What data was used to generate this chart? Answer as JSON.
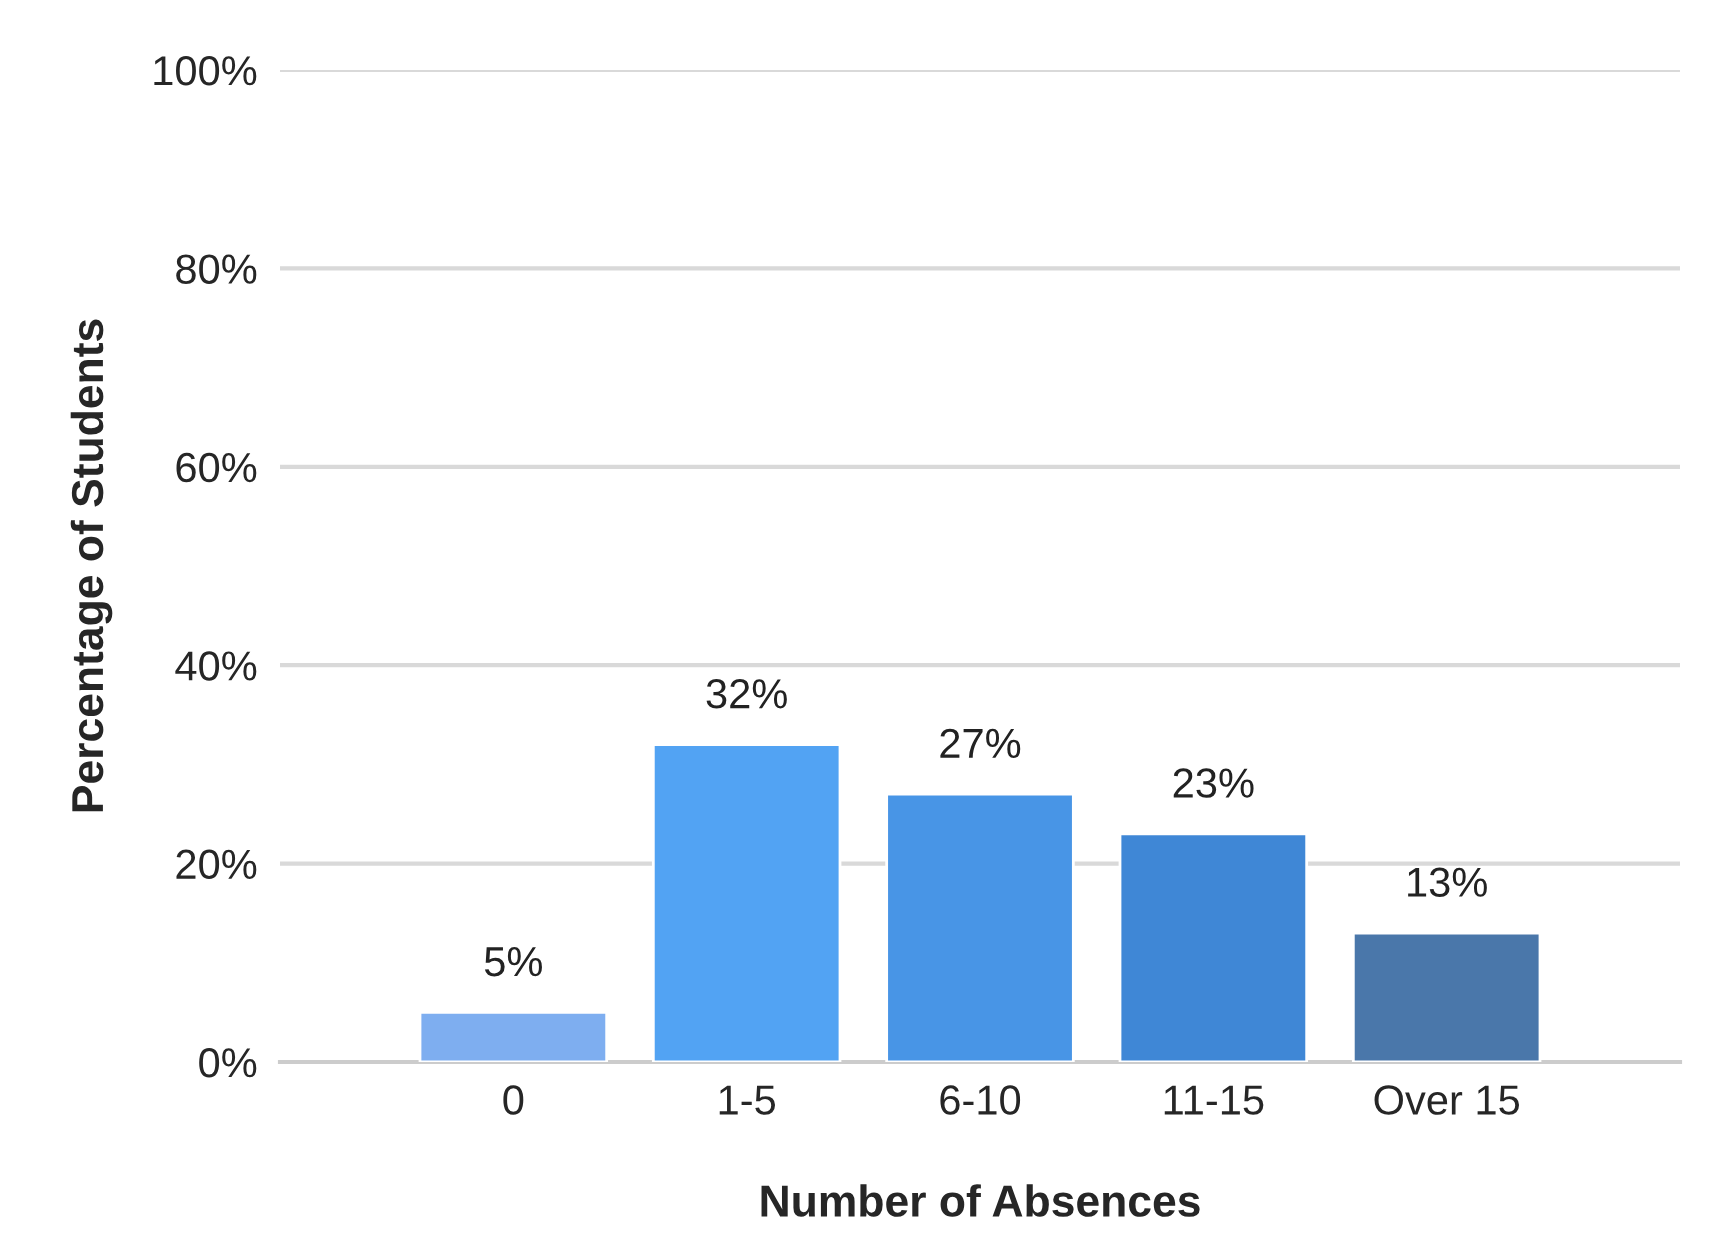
{
  "chart_data": {
    "type": "bar",
    "xlabel": "Number of Absences",
    "ylabel": "Percentage of Students",
    "categories": [
      "0",
      "1-5",
      "6-10",
      "11-15",
      "Over 15"
    ],
    "values": [
      5,
      32,
      27,
      23,
      13
    ],
    "colors": [
      "#7eaef0",
      "#52a3f3",
      "#4895e6",
      "#3f87d6",
      "#4a77aa"
    ],
    "value_labels": [
      "5%",
      "32%",
      "27%",
      "23%",
      "13%"
    ],
    "ylim": [
      0,
      100
    ],
    "yticks": [
      {
        "value": 0,
        "label": "0%"
      },
      {
        "value": 20,
        "label": "20%"
      },
      {
        "value": 40,
        "label": "40%"
      },
      {
        "value": 60,
        "label": "60%"
      },
      {
        "value": 80,
        "label": "80%"
      },
      {
        "value": 100,
        "label": "100%"
      }
    ],
    "grid": "y",
    "legend": false
  }
}
